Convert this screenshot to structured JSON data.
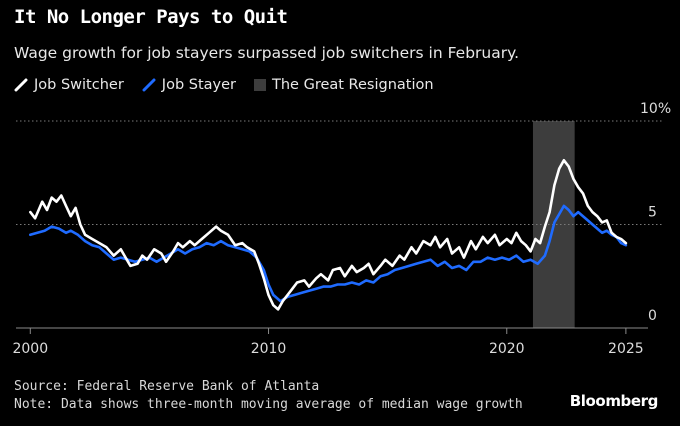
{
  "header": {
    "title": "It No Longer Pays to Quit",
    "subtitle": "Wage growth for job stayers surpassed job switchers in February."
  },
  "legend": {
    "items": [
      {
        "label": "Job Switcher",
        "color": "#ffffff"
      },
      {
        "label": "Job Stayer",
        "color": "#1f6bff"
      },
      {
        "label": "The Great Resignation",
        "color": "#3d3d3d"
      }
    ]
  },
  "footer": {
    "source": "Source: Federal Reserve Bank of Atlanta",
    "note": "Note: Data shows three-month moving average of median wage growth"
  },
  "brand": "Bloomberg",
  "chart_data": {
    "type": "line",
    "title": "It No Longer Pays to Quit",
    "subtitle": "Wage growth for job stayers surpassed job switchers in February.",
    "xlim": [
      1999.4,
      2026.6
    ],
    "ylim": [
      0,
      10
    ],
    "x_ticks": [
      2000,
      2010,
      2020,
      2025
    ],
    "x_tick_labels": [
      "2000",
      "2010",
      "2020",
      "2025"
    ],
    "y_ticks": [
      0,
      5,
      10
    ],
    "y_tick_labels": [
      "0",
      "5",
      "10%"
    ],
    "y_axis_position": "right",
    "grid": "horizontal dotted",
    "legend_position": "top-left",
    "shaded_region": {
      "label": "The Great Resignation",
      "x": [
        2021.1,
        2022.85
      ]
    },
    "series": [
      {
        "name": "Job Switcher",
        "color": "#ffffff",
        "points": [
          [
            2000.0,
            5.6
          ],
          [
            2000.2,
            5.3
          ],
          [
            2000.5,
            6.1
          ],
          [
            2000.7,
            5.7
          ],
          [
            2000.9,
            6.3
          ],
          [
            2001.1,
            6.1
          ],
          [
            2001.3,
            6.4
          ],
          [
            2001.5,
            5.9
          ],
          [
            2001.7,
            5.4
          ],
          [
            2001.9,
            5.8
          ],
          [
            2002.1,
            5.0
          ],
          [
            2002.3,
            4.5
          ],
          [
            2002.6,
            4.3
          ],
          [
            2002.9,
            4.1
          ],
          [
            2003.2,
            3.9
          ],
          [
            2003.5,
            3.5
          ],
          [
            2003.8,
            3.8
          ],
          [
            2004.0,
            3.4
          ],
          [
            2004.2,
            3.0
          ],
          [
            2004.5,
            3.1
          ],
          [
            2004.7,
            3.5
          ],
          [
            2004.9,
            3.3
          ],
          [
            2005.2,
            3.8
          ],
          [
            2005.5,
            3.6
          ],
          [
            2005.7,
            3.2
          ],
          [
            2006.0,
            3.7
          ],
          [
            2006.2,
            4.1
          ],
          [
            2006.4,
            3.9
          ],
          [
            2006.7,
            4.2
          ],
          [
            2006.9,
            4.0
          ],
          [
            2007.2,
            4.3
          ],
          [
            2007.5,
            4.6
          ],
          [
            2007.8,
            4.9
          ],
          [
            2008.0,
            4.7
          ],
          [
            2008.3,
            4.5
          ],
          [
            2008.6,
            4.0
          ],
          [
            2008.9,
            4.1
          ],
          [
            2009.1,
            3.9
          ],
          [
            2009.4,
            3.7
          ],
          [
            2009.6,
            3.1
          ],
          [
            2009.8,
            2.4
          ],
          [
            2010.0,
            1.6
          ],
          [
            2010.2,
            1.1
          ],
          [
            2010.4,
            0.9
          ],
          [
            2010.6,
            1.3
          ],
          [
            2010.8,
            1.6
          ],
          [
            2011.0,
            1.9
          ],
          [
            2011.2,
            2.2
          ],
          [
            2011.5,
            2.3
          ],
          [
            2011.7,
            2.0
          ],
          [
            2012.0,
            2.4
          ],
          [
            2012.2,
            2.6
          ],
          [
            2012.5,
            2.3
          ],
          [
            2012.7,
            2.8
          ],
          [
            2013.0,
            2.9
          ],
          [
            2013.2,
            2.5
          ],
          [
            2013.5,
            3.0
          ],
          [
            2013.7,
            2.7
          ],
          [
            2014.0,
            2.9
          ],
          [
            2014.2,
            3.1
          ],
          [
            2014.4,
            2.6
          ],
          [
            2014.7,
            3.0
          ],
          [
            2014.9,
            3.3
          ],
          [
            2015.2,
            3.0
          ],
          [
            2015.5,
            3.5
          ],
          [
            2015.7,
            3.3
          ],
          [
            2016.0,
            3.9
          ],
          [
            2016.2,
            3.6
          ],
          [
            2016.5,
            4.2
          ],
          [
            2016.8,
            4.0
          ],
          [
            2017.0,
            4.4
          ],
          [
            2017.2,
            3.9
          ],
          [
            2017.5,
            4.3
          ],
          [
            2017.7,
            3.6
          ],
          [
            2018.0,
            3.9
          ],
          [
            2018.2,
            3.4
          ],
          [
            2018.5,
            4.2
          ],
          [
            2018.7,
            3.8
          ],
          [
            2019.0,
            4.4
          ],
          [
            2019.2,
            4.1
          ],
          [
            2019.5,
            4.5
          ],
          [
            2019.7,
            4.0
          ],
          [
            2020.0,
            4.3
          ],
          [
            2020.2,
            4.1
          ],
          [
            2020.4,
            4.6
          ],
          [
            2020.6,
            4.2
          ],
          [
            2020.8,
            4.0
          ],
          [
            2021.0,
            3.7
          ],
          [
            2021.2,
            4.3
          ],
          [
            2021.4,
            4.1
          ],
          [
            2021.6,
            4.9
          ],
          [
            2021.8,
            5.6
          ],
          [
            2022.0,
            6.9
          ],
          [
            2022.2,
            7.7
          ],
          [
            2022.4,
            8.1
          ],
          [
            2022.6,
            7.8
          ],
          [
            2022.8,
            7.2
          ],
          [
            2023.0,
            6.8
          ],
          [
            2023.2,
            6.5
          ],
          [
            2023.4,
            5.9
          ],
          [
            2023.6,
            5.6
          ],
          [
            2023.8,
            5.4
          ],
          [
            2024.0,
            5.1
          ],
          [
            2024.2,
            5.2
          ],
          [
            2024.4,
            4.6
          ],
          [
            2024.6,
            4.4
          ],
          [
            2024.8,
            4.3
          ],
          [
            2025.0,
            4.1
          ]
        ]
      },
      {
        "name": "Job Stayer",
        "color": "#1f6bff",
        "points": [
          [
            2000.0,
            4.5
          ],
          [
            2000.3,
            4.6
          ],
          [
            2000.6,
            4.7
          ],
          [
            2000.9,
            4.9
          ],
          [
            2001.2,
            4.8
          ],
          [
            2001.5,
            4.6
          ],
          [
            2001.7,
            4.7
          ],
          [
            2002.0,
            4.5
          ],
          [
            2002.3,
            4.2
          ],
          [
            2002.6,
            4.0
          ],
          [
            2002.9,
            3.9
          ],
          [
            2003.2,
            3.6
          ],
          [
            2003.5,
            3.3
          ],
          [
            2003.8,
            3.4
          ],
          [
            2004.1,
            3.3
          ],
          [
            2004.4,
            3.2
          ],
          [
            2004.7,
            3.3
          ],
          [
            2005.0,
            3.4
          ],
          [
            2005.3,
            3.2
          ],
          [
            2005.6,
            3.4
          ],
          [
            2005.9,
            3.6
          ],
          [
            2006.2,
            3.8
          ],
          [
            2006.5,
            3.6
          ],
          [
            2006.8,
            3.8
          ],
          [
            2007.1,
            3.9
          ],
          [
            2007.4,
            4.1
          ],
          [
            2007.7,
            4.0
          ],
          [
            2008.0,
            4.2
          ],
          [
            2008.3,
            4.0
          ],
          [
            2008.6,
            3.9
          ],
          [
            2008.9,
            3.8
          ],
          [
            2009.2,
            3.7
          ],
          [
            2009.5,
            3.4
          ],
          [
            2009.8,
            2.8
          ],
          [
            2010.0,
            2.1
          ],
          [
            2010.2,
            1.6
          ],
          [
            2010.5,
            1.3
          ],
          [
            2010.8,
            1.5
          ],
          [
            2011.1,
            1.6
          ],
          [
            2011.4,
            1.7
          ],
          [
            2011.7,
            1.8
          ],
          [
            2012.0,
            1.9
          ],
          [
            2012.3,
            2.0
          ],
          [
            2012.6,
            2.0
          ],
          [
            2012.9,
            2.1
          ],
          [
            2013.2,
            2.1
          ],
          [
            2013.5,
            2.2
          ],
          [
            2013.8,
            2.1
          ],
          [
            2014.1,
            2.3
          ],
          [
            2014.4,
            2.2
          ],
          [
            2014.7,
            2.5
          ],
          [
            2015.0,
            2.6
          ],
          [
            2015.3,
            2.8
          ],
          [
            2015.6,
            2.9
          ],
          [
            2015.9,
            3.0
          ],
          [
            2016.2,
            3.1
          ],
          [
            2016.5,
            3.2
          ],
          [
            2016.8,
            3.3
          ],
          [
            2017.1,
            3.0
          ],
          [
            2017.4,
            3.2
          ],
          [
            2017.7,
            2.9
          ],
          [
            2018.0,
            3.0
          ],
          [
            2018.3,
            2.8
          ],
          [
            2018.6,
            3.2
          ],
          [
            2018.9,
            3.2
          ],
          [
            2019.2,
            3.4
          ],
          [
            2019.5,
            3.3
          ],
          [
            2019.8,
            3.4
          ],
          [
            2020.1,
            3.3
          ],
          [
            2020.4,
            3.5
          ],
          [
            2020.7,
            3.2
          ],
          [
            2021.0,
            3.3
          ],
          [
            2021.3,
            3.1
          ],
          [
            2021.6,
            3.5
          ],
          [
            2021.8,
            4.2
          ],
          [
            2022.0,
            5.1
          ],
          [
            2022.2,
            5.5
          ],
          [
            2022.4,
            5.9
          ],
          [
            2022.6,
            5.7
          ],
          [
            2022.8,
            5.4
          ],
          [
            2023.0,
            5.6
          ],
          [
            2023.2,
            5.4
          ],
          [
            2023.4,
            5.2
          ],
          [
            2023.6,
            5.0
          ],
          [
            2023.8,
            4.8
          ],
          [
            2024.0,
            4.6
          ],
          [
            2024.2,
            4.7
          ],
          [
            2024.4,
            4.5
          ],
          [
            2024.6,
            4.4
          ],
          [
            2024.8,
            4.1
          ],
          [
            2025.0,
            4.0
          ]
        ]
      }
    ]
  }
}
